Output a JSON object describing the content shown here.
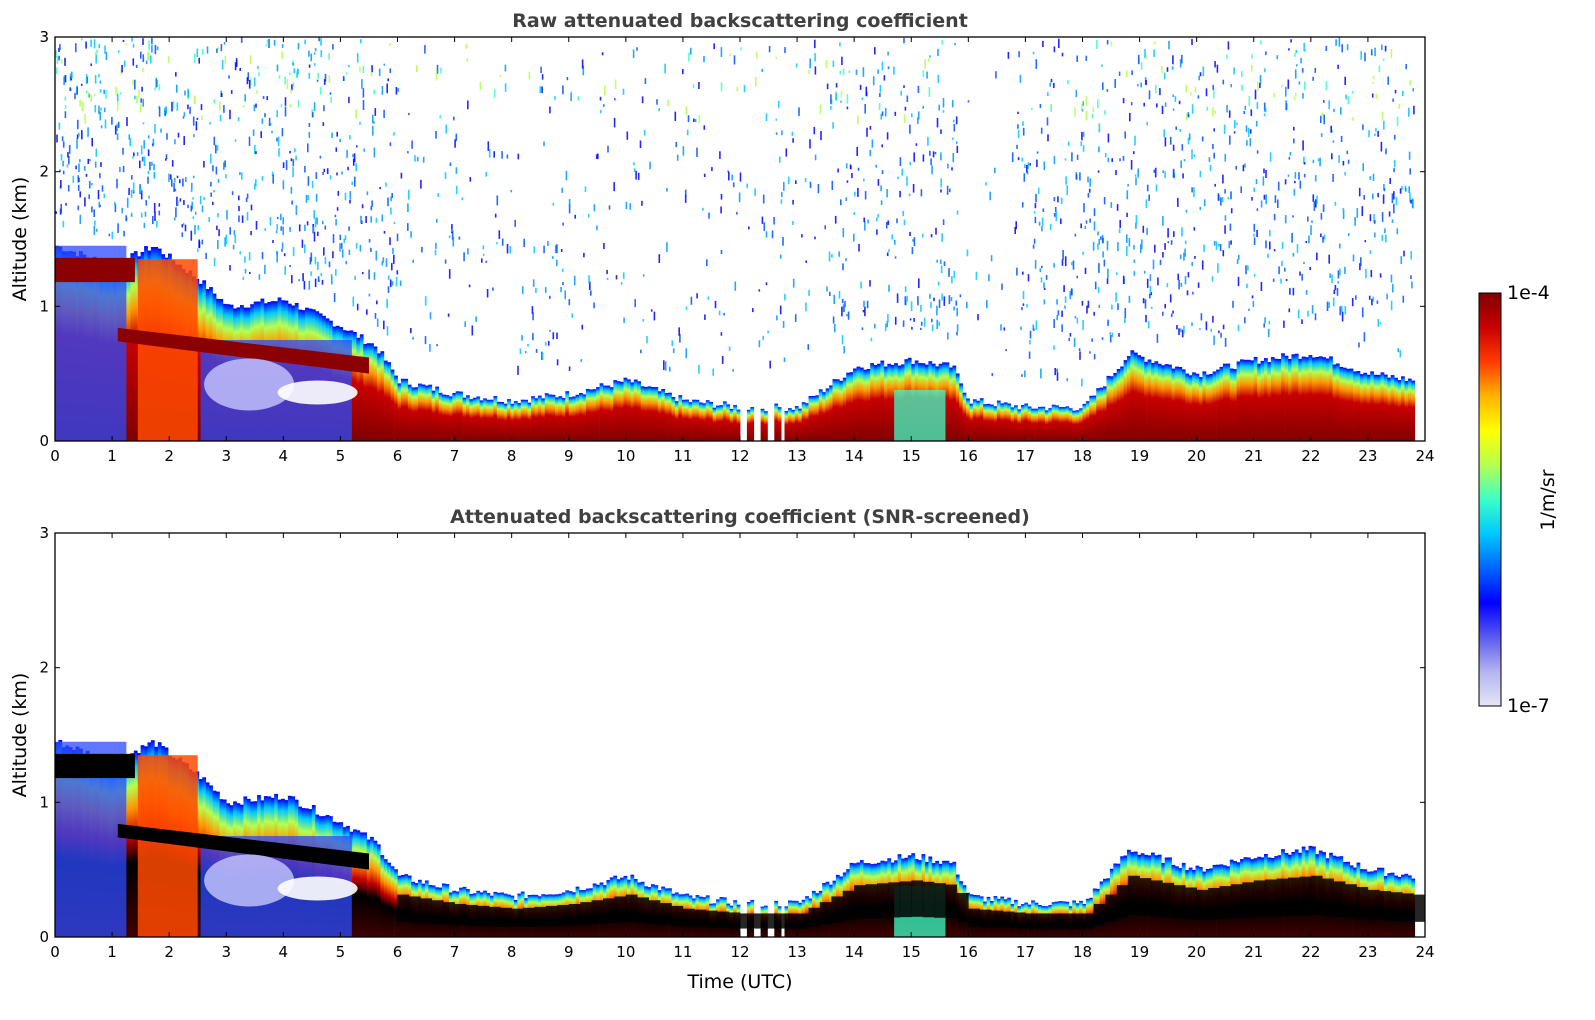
{
  "chart_data": [
    {
      "type": "heatmap",
      "title": "Raw attenuated backscattering coefficient",
      "xlabel": "",
      "ylabel": "Altitude (km)",
      "xlim": [
        0,
        24
      ],
      "ylim": [
        0,
        3
      ],
      "xticks": [
        "0",
        "1",
        "2",
        "3",
        "4",
        "5",
        "6",
        "7",
        "8",
        "9",
        "10",
        "11",
        "12",
        "13",
        "14",
        "15",
        "16",
        "17",
        "18",
        "19",
        "20",
        "21",
        "22",
        "23",
        "24"
      ],
      "yticks": [
        "0",
        "1",
        "2",
        "3"
      ],
      "layer_top_km": [
        {
          "t": 0.0,
          "top": 1.45
        },
        {
          "t": 1.0,
          "top": 1.3
        },
        {
          "t": 1.7,
          "top": 1.45
        },
        {
          "t": 2.5,
          "top": 1.2
        },
        {
          "t": 3.0,
          "top": 1.0
        },
        {
          "t": 4.0,
          "top": 1.05
        },
        {
          "t": 5.0,
          "top": 0.85
        },
        {
          "t": 5.6,
          "top": 0.7
        },
        {
          "t": 6.0,
          "top": 0.45
        },
        {
          "t": 7.0,
          "top": 0.35
        },
        {
          "t": 8.0,
          "top": 0.3
        },
        {
          "t": 9.0,
          "top": 0.35
        },
        {
          "t": 10.0,
          "top": 0.45
        },
        {
          "t": 11.0,
          "top": 0.3
        },
        {
          "t": 12.0,
          "top": 0.25
        },
        {
          "t": 13.0,
          "top": 0.25
        },
        {
          "t": 14.0,
          "top": 0.55
        },
        {
          "t": 15.0,
          "top": 0.6
        },
        {
          "t": 15.7,
          "top": 0.55
        },
        {
          "t": 16.0,
          "top": 0.3
        },
        {
          "t": 17.0,
          "top": 0.25
        },
        {
          "t": 18.0,
          "top": 0.25
        },
        {
          "t": 18.8,
          "top": 0.65
        },
        {
          "t": 20.0,
          "top": 0.5
        },
        {
          "t": 21.0,
          "top": 0.6
        },
        {
          "t": 22.0,
          "top": 0.65
        },
        {
          "t": 23.0,
          "top": 0.5
        },
        {
          "t": 23.8,
          "top": 0.45
        }
      ]
    },
    {
      "type": "heatmap",
      "title": "Attenuated backscattering coefficient (SNR-screened)",
      "xlabel": "Time (UTC)",
      "ylabel": "Altitude (km)",
      "xlim": [
        0,
        24
      ],
      "ylim": [
        0,
        3
      ],
      "xticks": [
        "0",
        "1",
        "2",
        "3",
        "4",
        "5",
        "6",
        "7",
        "8",
        "9",
        "10",
        "11",
        "12",
        "13",
        "14",
        "15",
        "16",
        "17",
        "18",
        "19",
        "20",
        "21",
        "22",
        "23",
        "24"
      ],
      "yticks": [
        "0",
        "1",
        "2",
        "3"
      ]
    }
  ],
  "colorbar": {
    "label": "1/m/sr",
    "max_label": "1e-4",
    "min_label": "1e-7",
    "colormap": [
      "#e6e6f5",
      "#b4b4f0",
      "#5a5af0",
      "#0000ff",
      "#0064ff",
      "#00c8ff",
      "#3cffc8",
      "#b4ff50",
      "#ffff00",
      "#ffb400",
      "#ff3c00",
      "#c80000",
      "#800000"
    ]
  }
}
